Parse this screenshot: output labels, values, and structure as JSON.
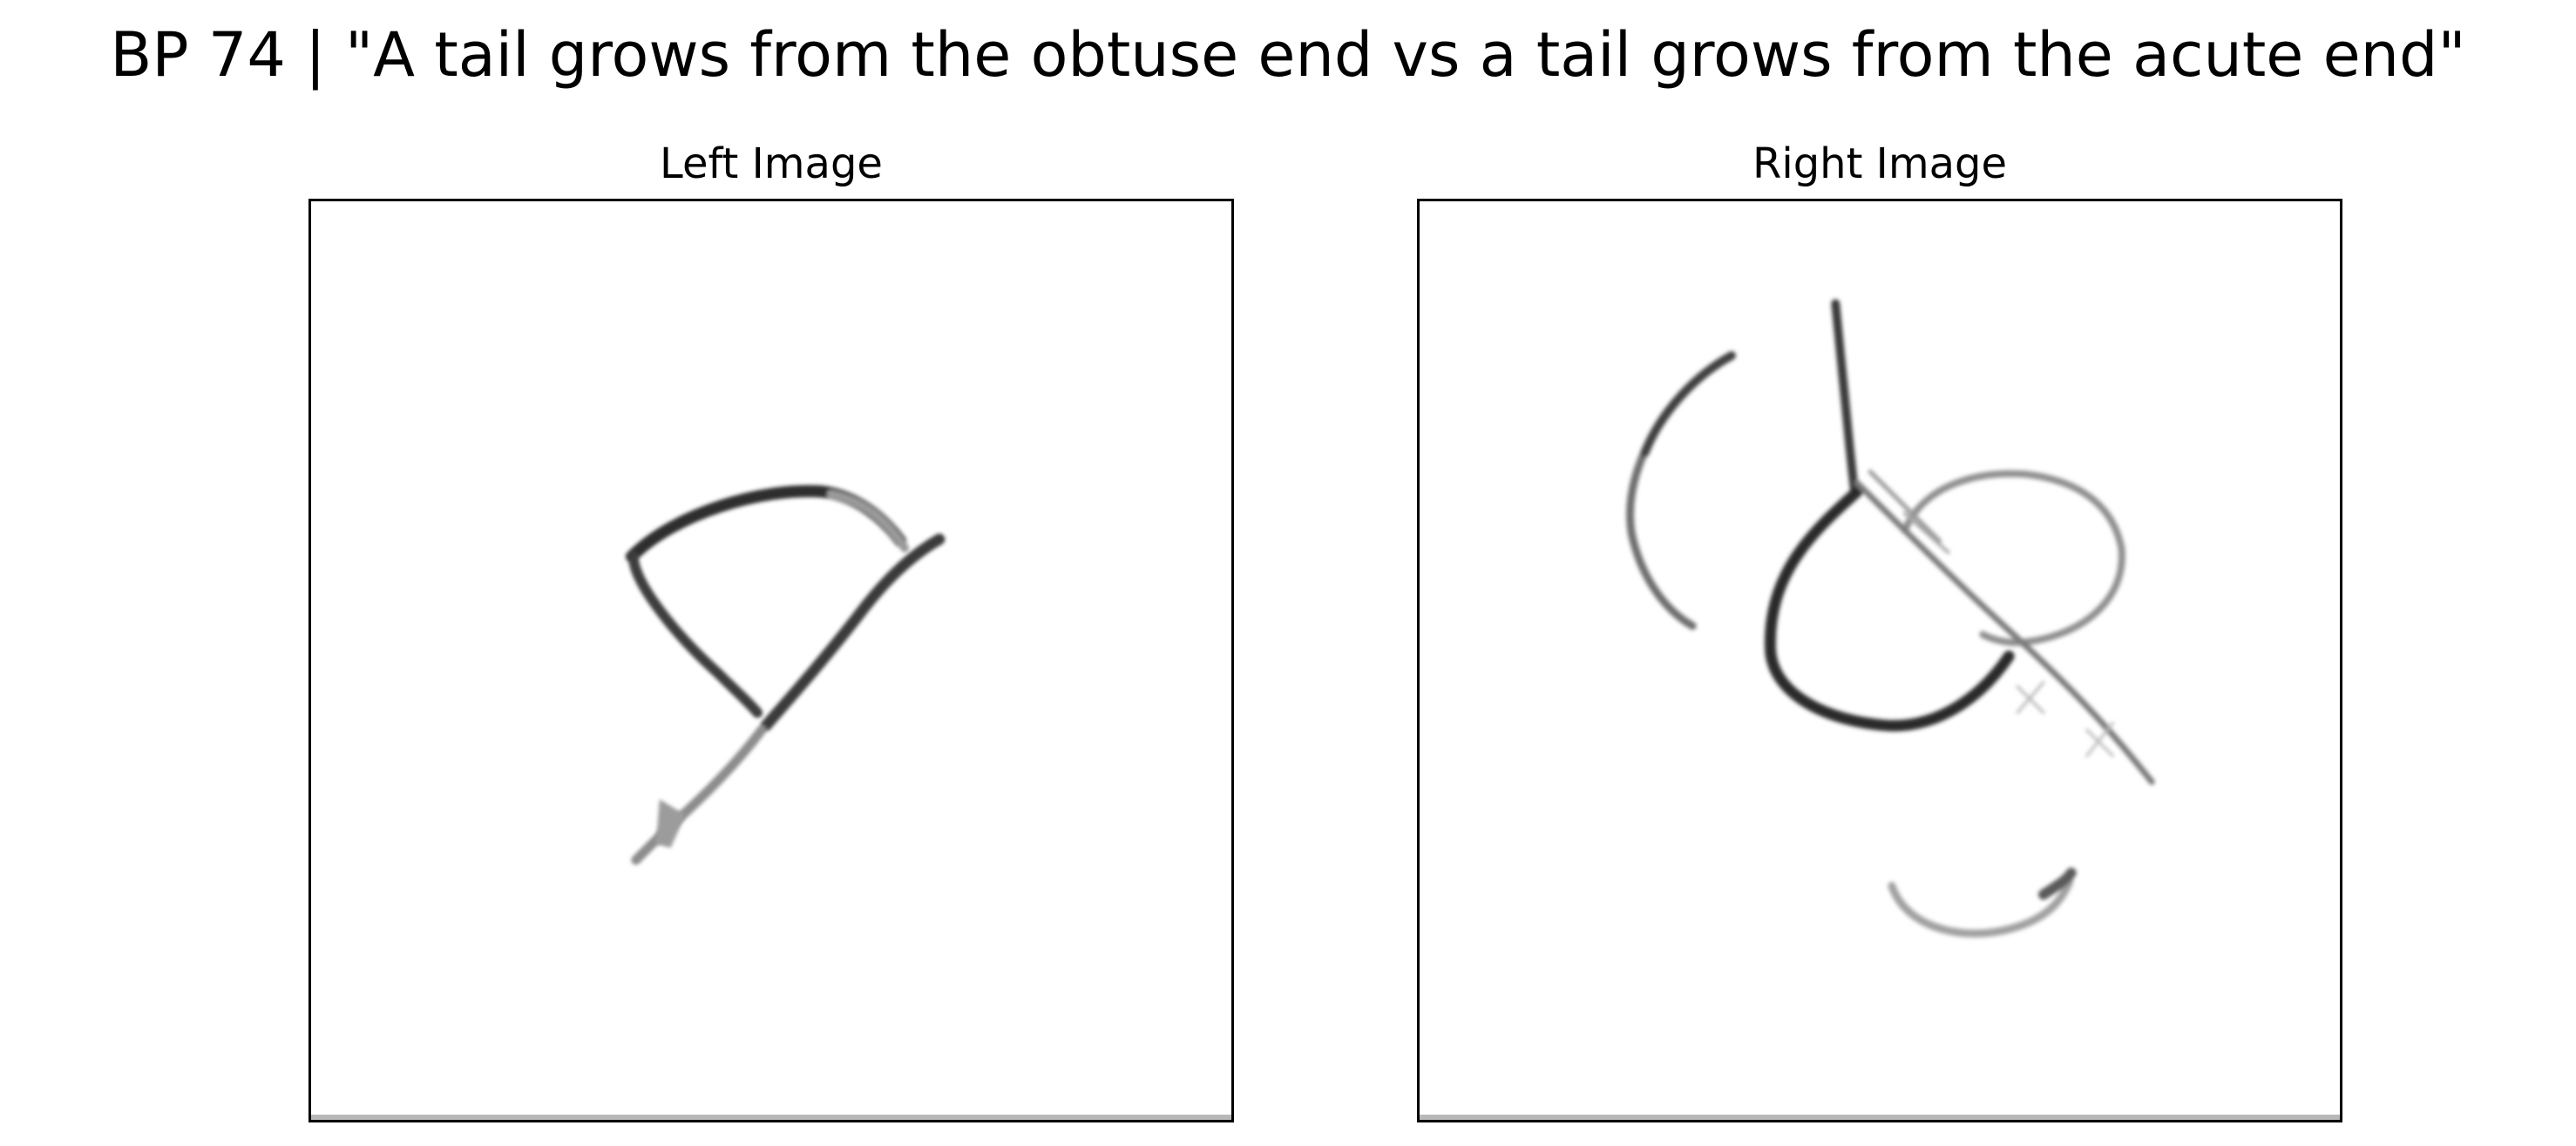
{
  "figure": {
    "title": "BP 74 | \"A tail grows from the obtuse end vs a tail grows from the acute end\""
  },
  "panels": {
    "left": {
      "title": "Left Image"
    },
    "right": {
      "title": "Right Image"
    }
  }
}
